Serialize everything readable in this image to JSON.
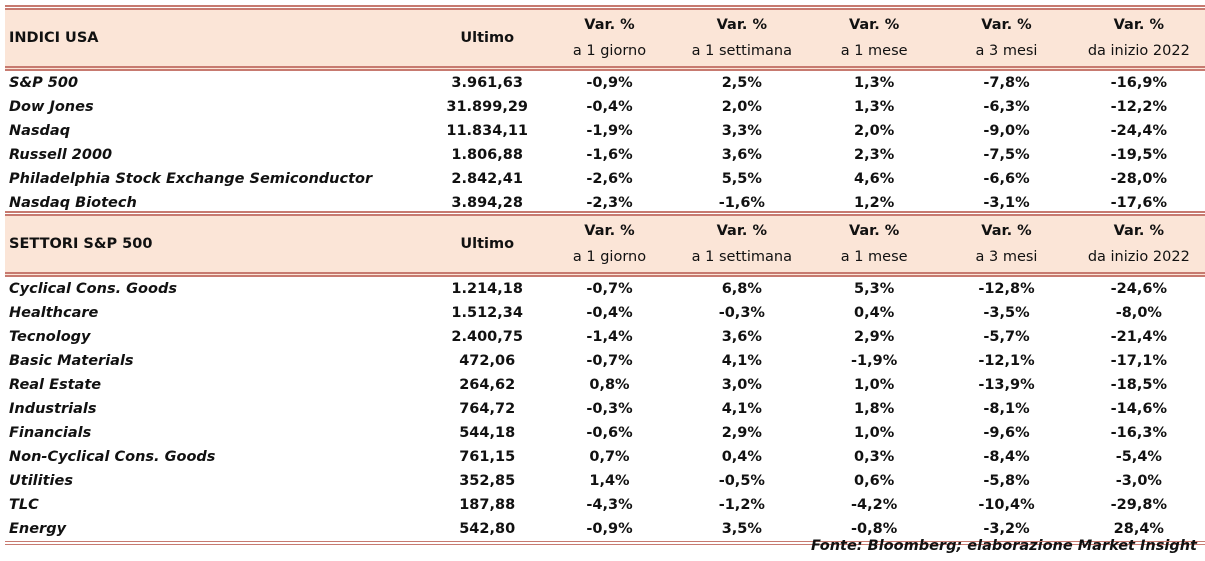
{
  "columns": {
    "ultimo": "Ultimo",
    "var": [
      {
        "top": "Var. %",
        "sub": "a 1 giorno"
      },
      {
        "top": "Var. %",
        "sub": "a 1 settimana"
      },
      {
        "top": "Var. %",
        "sub": "a 1 mese"
      },
      {
        "top": "Var. %",
        "sub": "a 3 mesi"
      },
      {
        "top": "Var. %",
        "sub": "da inizio 2022"
      }
    ]
  },
  "tables": [
    {
      "title": "INDICI USA",
      "rows": [
        {
          "name": "S&P 500",
          "values": [
            "3.961,63",
            "-0,9%",
            "2,5%",
            "1,3%",
            "-7,8%",
            "-16,9%"
          ]
        },
        {
          "name": "Dow Jones",
          "values": [
            "31.899,29",
            "-0,4%",
            "2,0%",
            "1,3%",
            "-6,3%",
            "-12,2%"
          ]
        },
        {
          "name": "Nasdaq",
          "values": [
            "11.834,11",
            "-1,9%",
            "3,3%",
            "2,0%",
            "-9,0%",
            "-24,4%"
          ]
        },
        {
          "name": "Russell 2000",
          "values": [
            "1.806,88",
            "-1,6%",
            "3,6%",
            "2,3%",
            "-7,5%",
            "-19,5%"
          ]
        },
        {
          "name": "Philadelphia Stock Exchange Semiconductor",
          "values": [
            "2.842,41",
            "-2,6%",
            "5,5%",
            "4,6%",
            "-6,6%",
            "-28,0%"
          ]
        },
        {
          "name": "Nasdaq Biotech",
          "values": [
            "3.894,28",
            "-2,3%",
            "-1,6%",
            "1,2%",
            "-3,1%",
            "-17,6%"
          ]
        }
      ]
    },
    {
      "title": "SETTORI S&P 500",
      "rows": [
        {
          "name": "Cyclical Cons. Goods",
          "values": [
            "1.214,18",
            "-0,7%",
            "6,8%",
            "5,3%",
            "-12,8%",
            "-24,6%"
          ]
        },
        {
          "name": "Healthcare",
          "values": [
            "1.512,34",
            "-0,4%",
            "-0,3%",
            "0,4%",
            "-3,5%",
            "-8,0%"
          ]
        },
        {
          "name": "Tecnology",
          "values": [
            "2.400,75",
            "-1,4%",
            "3,6%",
            "2,9%",
            "-5,7%",
            "-21,4%"
          ]
        },
        {
          "name": "Basic Materials",
          "values": [
            "472,06",
            "-0,7%",
            "4,1%",
            "-1,9%",
            "-12,1%",
            "-17,1%"
          ]
        },
        {
          "name": "Real Estate",
          "values": [
            "264,62",
            "0,8%",
            "3,0%",
            "1,0%",
            "-13,9%",
            "-18,5%"
          ]
        },
        {
          "name": "Industrials",
          "values": [
            "764,72",
            "-0,3%",
            "4,1%",
            "1,8%",
            "-8,1%",
            "-14,6%"
          ]
        },
        {
          "name": "Financials",
          "values": [
            "544,18",
            "-0,6%",
            "2,9%",
            "1,0%",
            "-9,6%",
            "-16,3%"
          ]
        },
        {
          "name": "Non-Cyclical Cons. Goods",
          "values": [
            "761,15",
            "0,7%",
            "0,4%",
            "0,3%",
            "-8,4%",
            "-5,4%"
          ]
        },
        {
          "name": "Utilities",
          "values": [
            "352,85",
            "1,4%",
            "-0,5%",
            "0,6%",
            "-5,8%",
            "-3,0%"
          ]
        },
        {
          "name": "TLC",
          "values": [
            "187,88",
            "-4,3%",
            "-1,2%",
            "-4,2%",
            "-10,4%",
            "-29,8%"
          ]
        },
        {
          "name": "Energy",
          "values": [
            "542,80",
            "-0,9%",
            "3,5%",
            "-0,8%",
            "-3,2%",
            "28,4%"
          ]
        }
      ]
    }
  ],
  "source": "Fonte: Bloomberg; elaborazione Market Insight",
  "colors": {
    "header_bg": "#fbe5d7",
    "rule": "#c77a70"
  }
}
